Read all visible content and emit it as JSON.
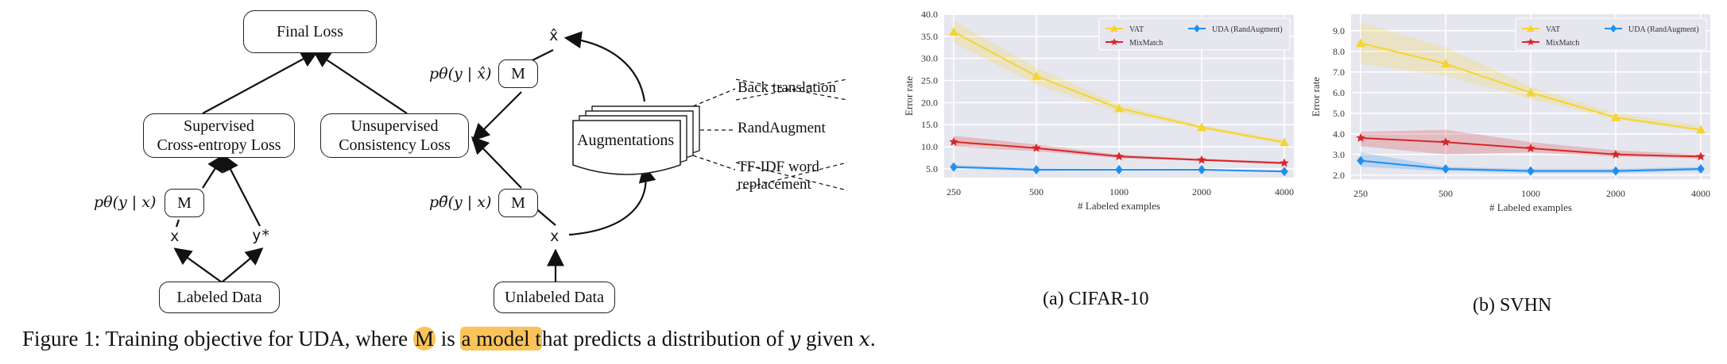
{
  "diagram": {
    "final_loss": "Final Loss",
    "supervised_loss_line1": "Supervised",
    "supervised_loss_line2": "Cross-entropy Loss",
    "unsupervised_loss_line1": "Unsupervised",
    "unsupervised_loss_line2": "Consistency Loss",
    "model_label": "M",
    "p_sup": "pθ(y | x)",
    "p_tilde": "pθ̃(y | x)",
    "p_hat": "pθ(y | x̂)",
    "x": "x",
    "y_star": "y*",
    "x_hat": "x̂",
    "labeled_data": "Labeled Data",
    "unlabeled_data": "Unlabeled Data",
    "augmentations": "Augmentations",
    "aug_options": [
      "Back translation",
      "RandAugment",
      "TF-IDF word",
      "replacement"
    ]
  },
  "charts": {
    "colors": {
      "VAT": "#f5d430",
      "MixMatch": "#d62728",
      "UDA (RandAugment)": "#1f8fef",
      "bg": "#e6e6ef"
    },
    "cifar_caption": "(a) CIFAR-10",
    "svhn_caption": "(b) SVHN"
  },
  "chart_data": [
    {
      "type": "line",
      "title": "",
      "xlabel": "# Labeled examples",
      "ylabel": "Error rate",
      "categories": [
        "250",
        "500",
        "1000",
        "2000",
        "4000"
      ],
      "ylim": [
        3.0,
        40.0
      ],
      "yticks": [
        "5.0",
        "10.0",
        "15.0",
        "20.0",
        "25.0",
        "30.0",
        "35.0",
        "40.0"
      ],
      "yticks_val": [
        5,
        10,
        15,
        20,
        25,
        30,
        35,
        40
      ],
      "grid": true,
      "legend": "top-right",
      "series": [
        {
          "name": "VAT",
          "values": [
            36.0,
            26.0,
            18.7,
            14.4,
            11.0
          ],
          "lo": [
            33.5,
            24.0,
            17.8,
            14.0,
            10.5
          ],
          "hi": [
            38.5,
            28.0,
            19.6,
            14.9,
            11.6
          ],
          "marker": "triangle"
        },
        {
          "name": "MixMatch",
          "values": [
            11.1,
            9.7,
            7.8,
            7.0,
            6.3
          ],
          "lo": [
            10.0,
            9.0,
            7.4,
            6.8,
            6.0
          ],
          "hi": [
            12.5,
            10.5,
            8.2,
            7.3,
            6.6
          ],
          "marker": "star"
        },
        {
          "name": "UDA (RandAugment)",
          "values": [
            5.4,
            4.8,
            4.8,
            4.8,
            4.4
          ],
          "lo": [
            5.0,
            4.5,
            4.6,
            4.6,
            4.2
          ],
          "hi": [
            5.9,
            5.1,
            5.0,
            5.0,
            4.6
          ],
          "marker": "diamond"
        }
      ]
    },
    {
      "type": "line",
      "title": "",
      "xlabel": "# Labeled examples",
      "ylabel": "Error rate",
      "categories": [
        "250",
        "500",
        "1000",
        "2000",
        "4000"
      ],
      "ylim": [
        1.8,
        9.8
      ],
      "yticks": [
        "2.0",
        "3.0",
        "4.0",
        "5.0",
        "6.0",
        "7.0",
        "8.0",
        "9.0"
      ],
      "yticks_val": [
        2,
        3,
        4,
        5,
        6,
        7,
        8,
        9
      ],
      "grid": true,
      "legend": "top-right",
      "series": [
        {
          "name": "VAT",
          "values": [
            8.4,
            7.4,
            6.0,
            4.8,
            4.2
          ],
          "lo": [
            7.4,
            6.8,
            5.7,
            4.7,
            4.1
          ],
          "hi": [
            9.4,
            8.2,
            6.3,
            5.0,
            4.4
          ],
          "marker": "triangle"
        },
        {
          "name": "MixMatch",
          "values": [
            3.8,
            3.6,
            3.3,
            3.0,
            2.9
          ],
          "lo": [
            3.4,
            3.0,
            3.1,
            2.9,
            2.8
          ],
          "hi": [
            4.1,
            4.2,
            3.6,
            3.2,
            3.0
          ],
          "marker": "star"
        },
        {
          "name": "UDA (RandAugment)",
          "values": [
            2.7,
            2.3,
            2.2,
            2.2,
            2.3
          ],
          "lo": [
            2.4,
            2.2,
            2.1,
            2.1,
            2.2
          ],
          "hi": [
            3.1,
            2.4,
            2.3,
            2.3,
            2.4
          ],
          "marker": "diamond"
        }
      ]
    }
  ],
  "caption": {
    "prefix": "Figure 1: Training objective for UDA, where ",
    "m": "M",
    "is": " is ",
    "a_model": "a model t",
    "rest": "hat predicts a distribution of ",
    "y": "y",
    "given": " given ",
    "x": "x",
    "period": "."
  }
}
